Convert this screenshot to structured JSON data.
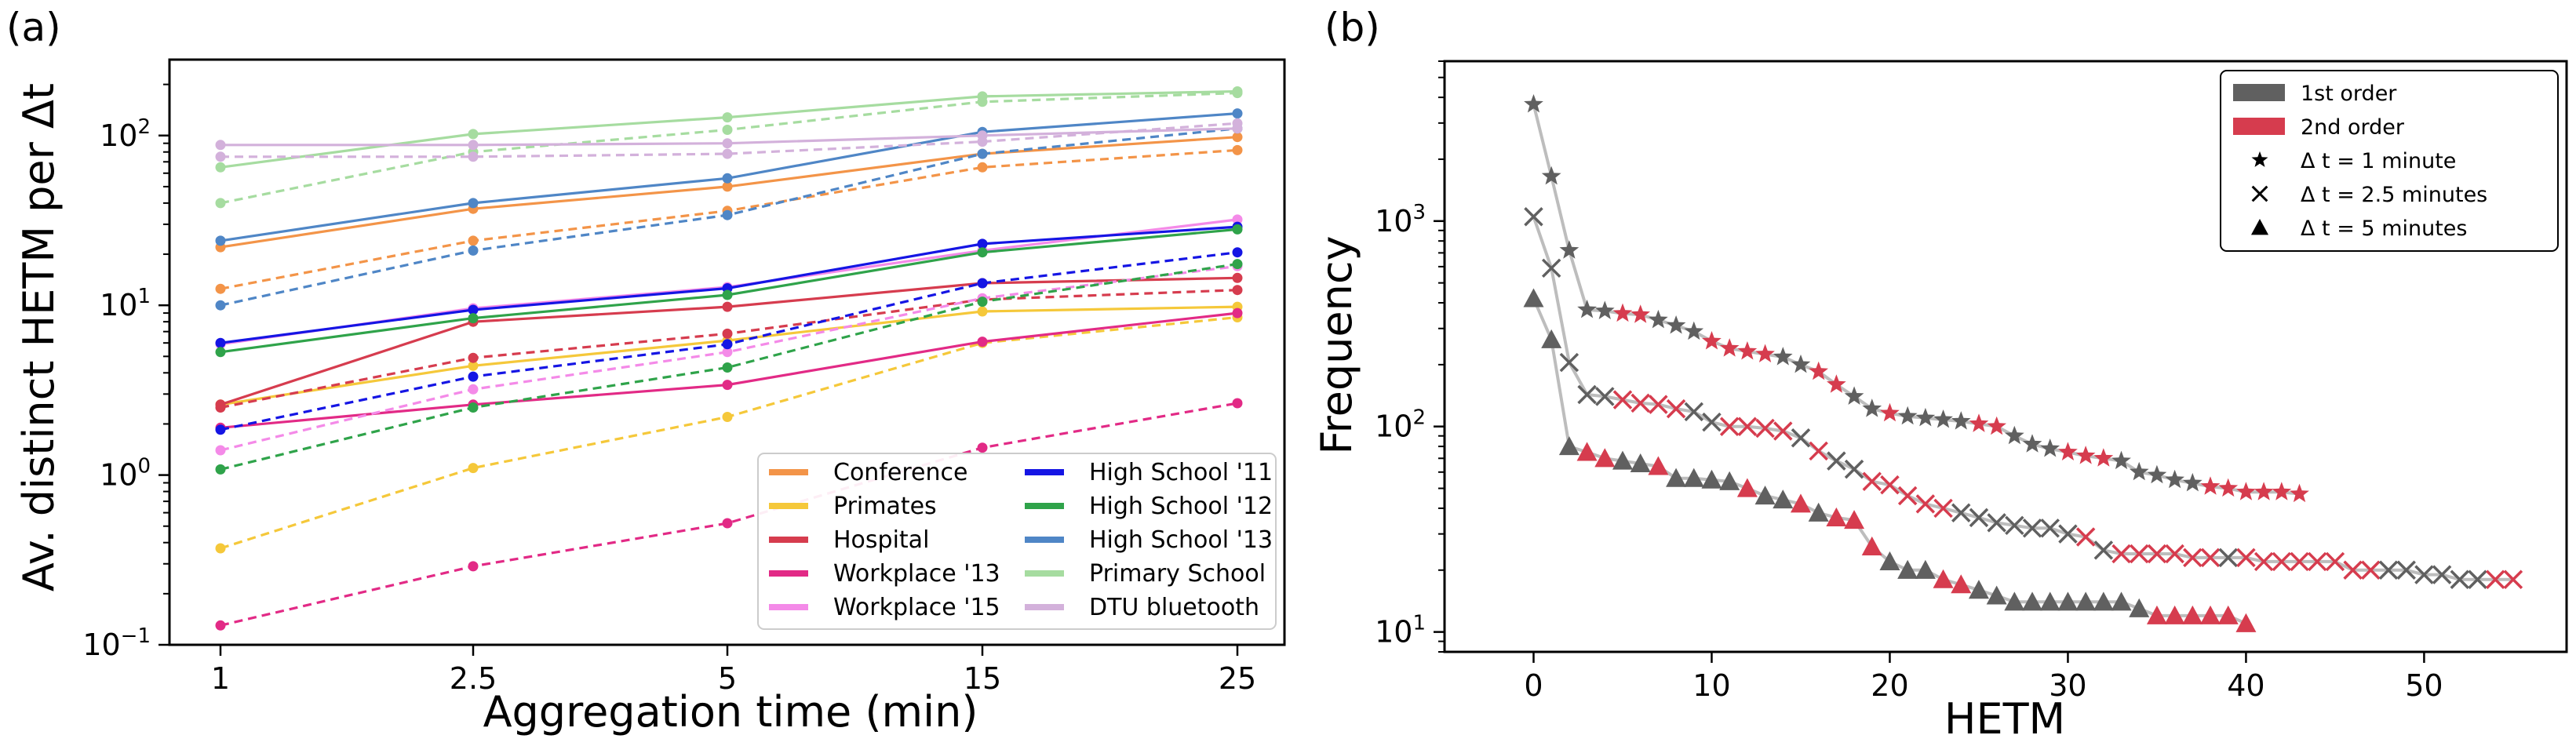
{
  "chart_data": [
    {
      "type": "line",
      "panel_label": "(a)",
      "xlabel": "Aggregation time (min)",
      "ylabel": "Av. distinct HETM per Δt",
      "yscale": "log",
      "ylim": [
        0.1,
        280
      ],
      "categories": [
        "1",
        "2.5",
        "5",
        "15",
        "25"
      ],
      "y_ticks": [
        {
          "value": 0.1,
          "base": "10",
          "exp": "−1"
        },
        {
          "value": 1,
          "base": "10",
          "exp": "0"
        },
        {
          "value": 10,
          "base": "10",
          "exp": "1"
        },
        {
          "value": 100,
          "base": "10",
          "exp": "2"
        }
      ],
      "legend_position": "lower-right",
      "series": [
        {
          "name": "Conference",
          "color": "#f39448",
          "solid": [
            22,
            37,
            50,
            78,
            98
          ],
          "dashed": [
            12.5,
            24,
            36,
            65,
            82
          ]
        },
        {
          "name": "Primates",
          "color": "#f5c83a",
          "solid": [
            2.6,
            4.4,
            6.2,
            9.2,
            9.8
          ],
          "dashed": [
            0.37,
            1.1,
            2.2,
            6.0,
            8.5
          ]
        },
        {
          "name": "Hospital",
          "color": "#d63c4e",
          "solid": [
            2.6,
            8.0,
            9.8,
            13.5,
            14.5
          ],
          "dashed": [
            2.5,
            4.9,
            6.8,
            10.8,
            12.3
          ]
        },
        {
          "name": "Workplace '13",
          "color": "#e22a86",
          "solid": [
            1.9,
            2.6,
            3.4,
            6.1,
            9.0
          ],
          "dashed": [
            0.13,
            0.29,
            0.52,
            1.45,
            2.65
          ]
        },
        {
          "name": "Workplace '15",
          "color": "#f48ae8",
          "solid": [
            5.9,
            9.6,
            12.8,
            21,
            32
          ],
          "dashed": [
            1.4,
            3.2,
            5.3,
            11,
            17
          ]
        },
        {
          "name": "High School '11",
          "color": "#1515e4",
          "solid": [
            6.0,
            9.4,
            12.6,
            23,
            29
          ],
          "dashed": [
            1.85,
            3.8,
            5.9,
            13.5,
            20.5
          ]
        },
        {
          "name": "High School '12",
          "color": "#2fa34a",
          "solid": [
            5.3,
            8.4,
            11.5,
            20.5,
            28
          ],
          "dashed": [
            1.08,
            2.5,
            4.3,
            10.5,
            17.5
          ]
        },
        {
          "name": "High School '13",
          "color": "#4f86c6",
          "solid": [
            24,
            40,
            56,
            105,
            135
          ],
          "dashed": [
            10,
            21,
            34,
            78,
            110
          ]
        },
        {
          "name": "Primary School",
          "color": "#a6dca0",
          "solid": [
            65,
            102,
            128,
            170,
            182
          ],
          "dashed": [
            40,
            80,
            108,
            158,
            178
          ]
        },
        {
          "name": "DTU bluetooth",
          "color": "#d3b1db",
          "solid": [
            88,
            88,
            90,
            100,
            110
          ],
          "dashed": [
            75,
            75,
            78,
            92,
            118
          ]
        }
      ]
    },
    {
      "type": "scatter",
      "panel_label": "(b)",
      "xlabel": "HETM",
      "ylabel": "Frequency",
      "yscale": "log",
      "xlim": [
        -5,
        58
      ],
      "ylim": [
        8,
        6000
      ],
      "x_ticks": [
        0,
        10,
        20,
        30,
        40,
        50
      ],
      "y_ticks": [
        {
          "value": 10,
          "base": "10",
          "exp": "1"
        },
        {
          "value": 100,
          "base": "10",
          "exp": "2"
        },
        {
          "value": 1000,
          "base": "10",
          "exp": "3"
        }
      ],
      "legend_position": "top-right",
      "order_colors": {
        "first": "#606060",
        "second": "#d63c4e"
      },
      "legend": [
        {
          "kind": "patch",
          "color": "#606060",
          "label": "1st order"
        },
        {
          "kind": "patch",
          "color": "#d63c4e",
          "label": "2nd order"
        },
        {
          "kind": "star",
          "label": "Δ t = 1 minute"
        },
        {
          "kind": "x",
          "label": "Δ t = 2.5 minutes"
        },
        {
          "kind": "triangle",
          "label": "Δ t = 5 minutes"
        }
      ],
      "series": [
        {
          "name": "Δ t = 1 minute",
          "marker": "star",
          "y": [
            3700,
            1650,
            720,
            370,
            365,
            355,
            350,
            330,
            310,
            290,
            260,
            240,
            232,
            225,
            218,
            200,
            185,
            160,
            140,
            122,
            116,
            112,
            110,
            108,
            106,
            103,
            100,
            90,
            82,
            78,
            75,
            72,
            70,
            68,
            60,
            58,
            55,
            53,
            51,
            50,
            48,
            48,
            48,
            47
          ],
          "order": [
            1,
            1,
            1,
            1,
            1,
            2,
            2,
            1,
            1,
            1,
            2,
            2,
            2,
            2,
            1,
            1,
            2,
            2,
            1,
            1,
            2,
            1,
            1,
            1,
            1,
            2,
            2,
            1,
            1,
            1,
            2,
            2,
            2,
            1,
            1,
            1,
            1,
            1,
            2,
            2,
            2,
            2,
            2,
            2
          ]
        },
        {
          "name": "Δ t = 2.5 minutes",
          "marker": "x",
          "y": [
            1050,
            590,
            205,
            143,
            140,
            135,
            130,
            128,
            122,
            118,
            105,
            100,
            100,
            98,
            95,
            88,
            76,
            68,
            62,
            54,
            52,
            46,
            42,
            40,
            38,
            36,
            34,
            33,
            32,
            32,
            30,
            29,
            25,
            24,
            24,
            24,
            24,
            23,
            23,
            23,
            23,
            22,
            22,
            22,
            22,
            22,
            20,
            20,
            20,
            20,
            19,
            19,
            18,
            18,
            18,
            18
          ],
          "order": [
            1,
            1,
            1,
            1,
            1,
            2,
            2,
            2,
            2,
            1,
            1,
            2,
            2,
            2,
            2,
            1,
            2,
            1,
            1,
            2,
            2,
            2,
            2,
            2,
            1,
            1,
            1,
            1,
            1,
            1,
            1,
            2,
            1,
            2,
            2,
            2,
            2,
            2,
            2,
            1,
            2,
            2,
            2,
            2,
            2,
            2,
            2,
            2,
            1,
            1,
            1,
            1,
            1,
            1,
            2,
            2
          ]
        },
        {
          "name": "Δ t = 5 minutes",
          "marker": "triangle",
          "y": [
            420,
            265,
            80,
            75,
            70,
            68,
            66,
            64,
            56,
            56,
            55,
            54,
            50,
            46,
            44,
            42,
            38,
            36,
            35,
            26,
            22,
            20,
            20,
            18,
            17,
            16,
            15,
            14,
            14,
            14,
            14,
            14,
            14,
            14,
            13,
            12,
            12,
            12,
            12,
            12,
            11
          ],
          "order": [
            1,
            1,
            1,
            2,
            2,
            1,
            1,
            2,
            1,
            1,
            1,
            1,
            2,
            1,
            1,
            2,
            1,
            2,
            2,
            2,
            1,
            1,
            1,
            2,
            2,
            1,
            1,
            1,
            1,
            1,
            1,
            1,
            1,
            1,
            1,
            2,
            2,
            2,
            2,
            2,
            2
          ]
        }
      ]
    }
  ]
}
